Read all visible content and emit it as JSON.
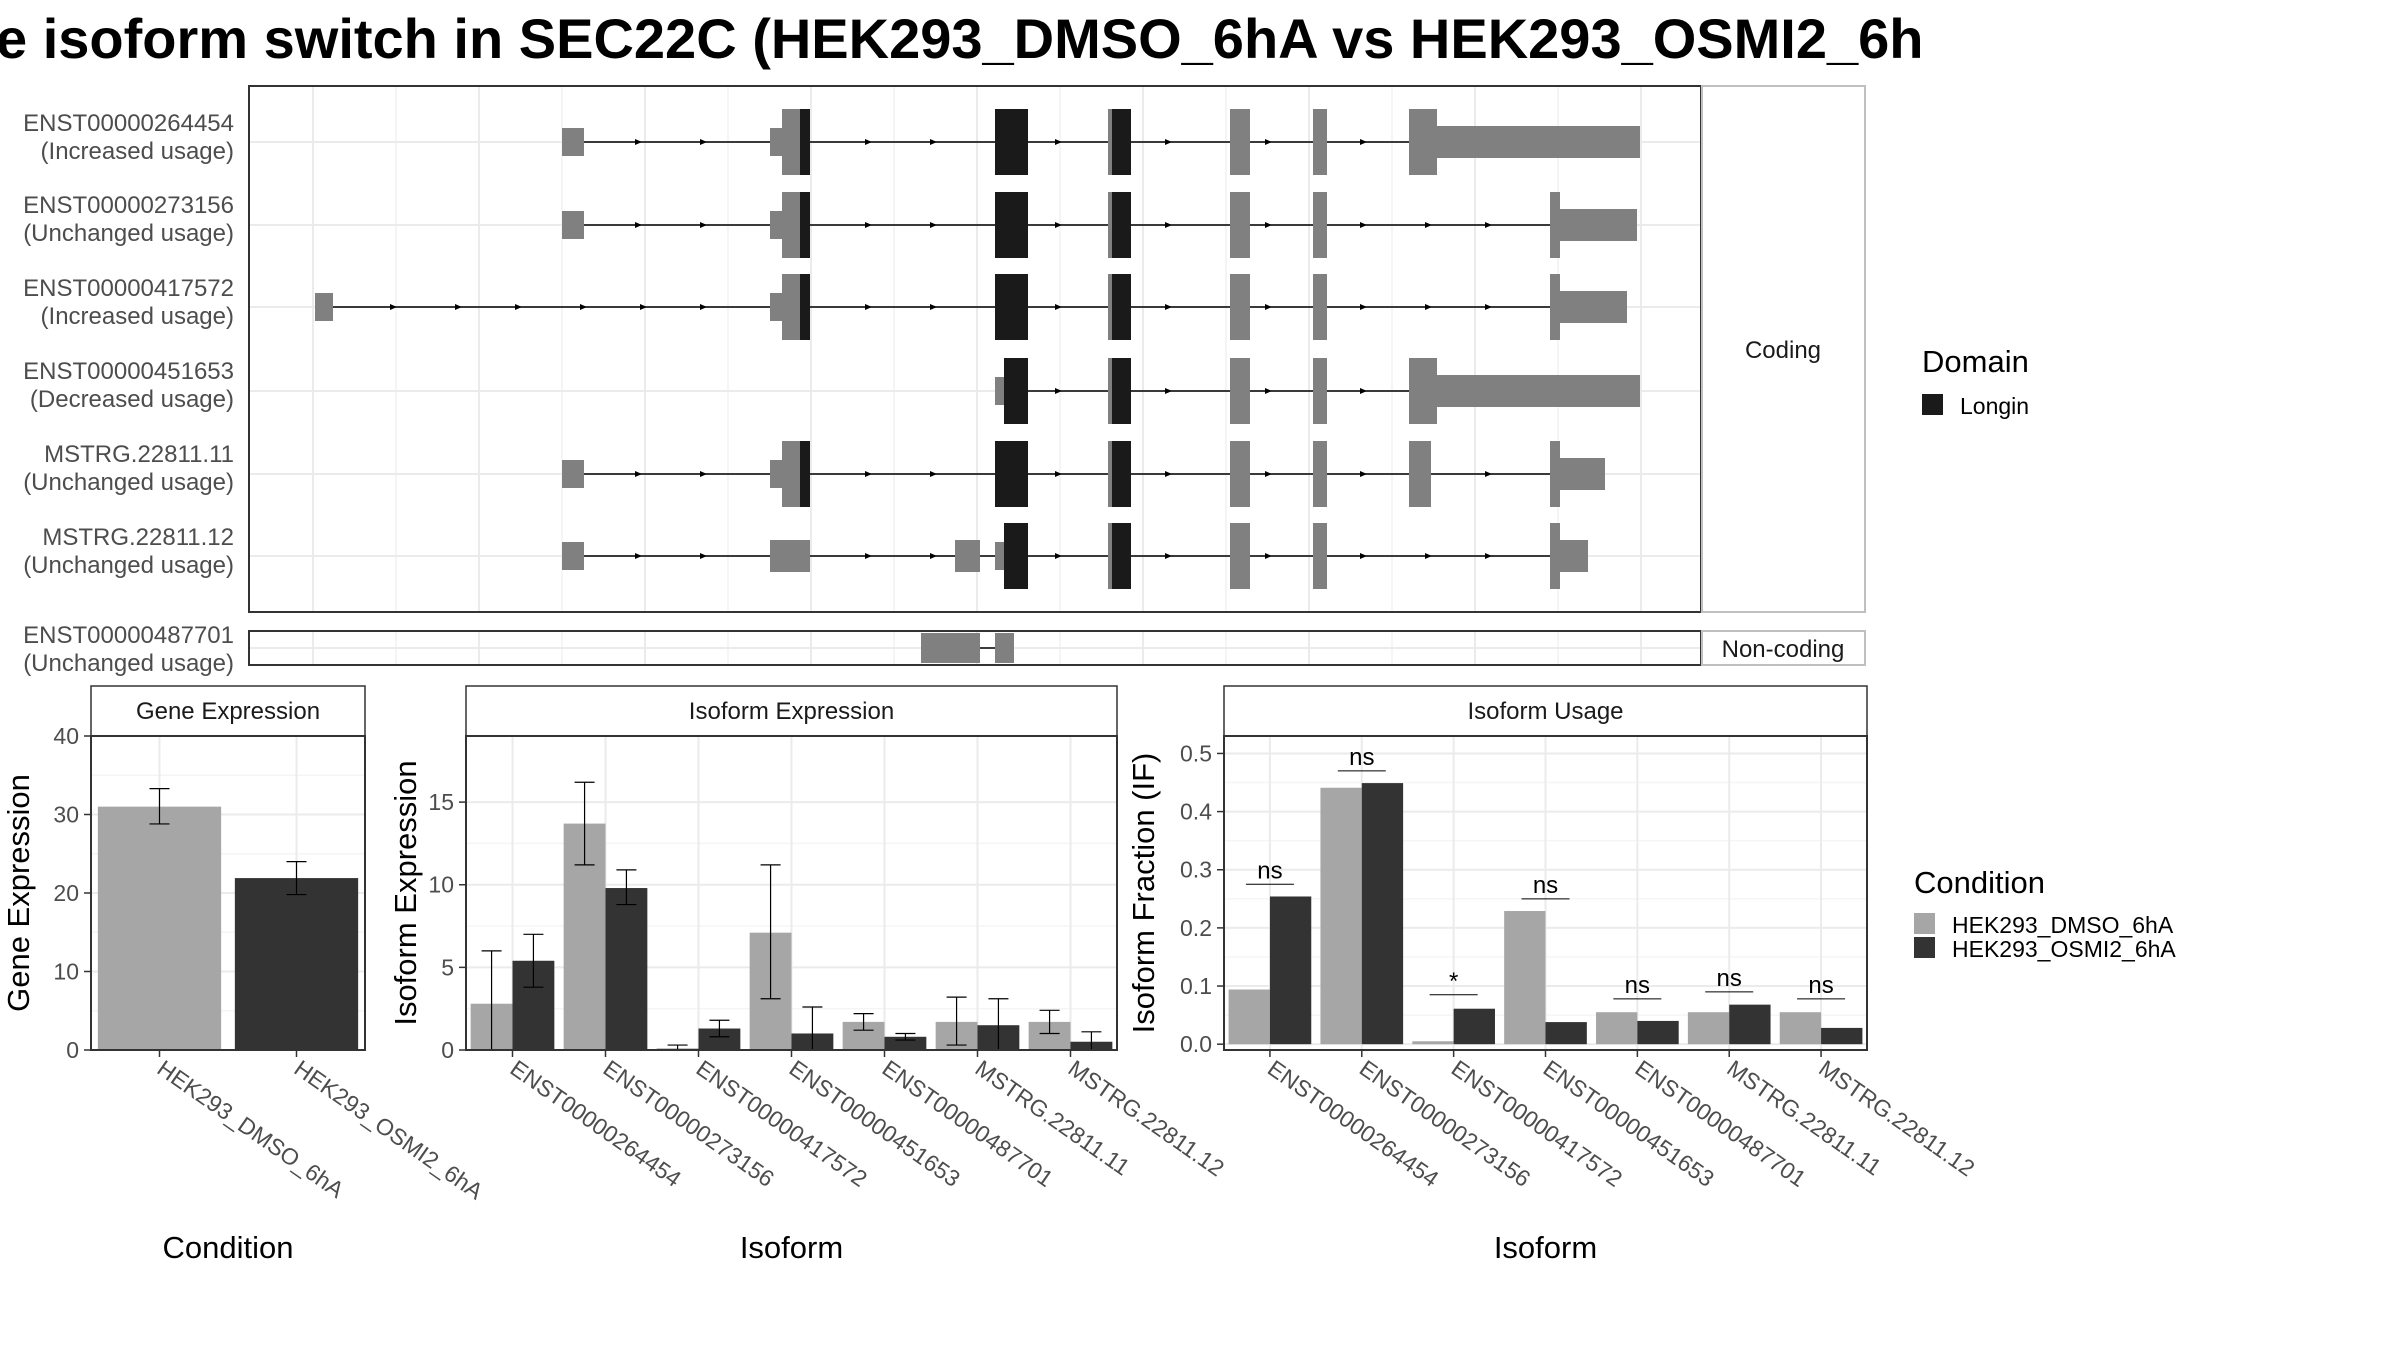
{
  "title": "e isoform switch in SEC22C (HEK293_DMSO_6hA vs HEK293_OSMI2_6h",
  "colors": {
    "dmso": "#a6a6a6",
    "osmi": "#333333",
    "exon": "#808080",
    "domain": "#1a1a1a",
    "panel_border": "#333333",
    "strip_border": "#bfbfbf",
    "grid_major": "#ebebeb",
    "grid_minor": "#f5f5f5"
  },
  "transcripts": {
    "strip_coding": "Coding",
    "strip_noncoding": "Non-coding",
    "coding": [
      {
        "id": "ENST00000264454",
        "usage": "(Increased usage)"
      },
      {
        "id": "ENST00000273156",
        "usage": "(Unchanged usage)"
      },
      {
        "id": "ENST00000417572",
        "usage": "(Increased usage)"
      },
      {
        "id": "ENST00000451653",
        "usage": "(Decreased usage)"
      },
      {
        "id": "MSTRG.22811.11",
        "usage": "(Unchanged usage)"
      },
      {
        "id": "MSTRG.22811.12",
        "usage": "(Unchanged usage)"
      }
    ],
    "noncoding": [
      {
        "id": "ENST00000487701",
        "usage": "(Unchanged usage)"
      }
    ]
  },
  "legend_domain": {
    "title": "Domain",
    "items": [
      "Longin"
    ]
  },
  "legend_condition": {
    "title": "Condition",
    "items": [
      "HEK293_DMSO_6hA",
      "HEK293_OSMI2_6hA"
    ]
  },
  "chart_data": [
    {
      "type": "bar",
      "title": "Gene Expression",
      "xlabel": "Condition",
      "ylabel": "Gene Expression",
      "ylim": [
        0,
        40
      ],
      "yticks": [
        0,
        10,
        20,
        30,
        40
      ],
      "categories": [
        "HEK293_DMSO_6hA",
        "HEK293_OSMI2_6hA"
      ],
      "values": [
        31.0,
        21.9
      ],
      "errors": [
        [
          28.8,
          33.3
        ],
        [
          19.8,
          24.0
        ]
      ]
    },
    {
      "type": "bar",
      "title": "Isoform Expression",
      "xlabel": "Isoform",
      "ylabel": "Isoform Expression",
      "ylim": [
        0,
        19
      ],
      "yticks": [
        0,
        5,
        10,
        15
      ],
      "categories": [
        "ENST00000264454",
        "ENST00000273156",
        "ENST00000417572",
        "ENST00000451653",
        "ENST00000487701",
        "MSTRG.22811.11",
        "MSTRG.22811.12"
      ],
      "series": [
        {
          "name": "HEK293_DMSO_6hA",
          "values": [
            2.8,
            13.7,
            0.1,
            7.1,
            1.7,
            1.7,
            1.7
          ],
          "errors": [
            [
              0.0,
              6.0
            ],
            [
              11.2,
              16.2
            ],
            [
              0.0,
              0.3
            ],
            [
              3.1,
              11.2
            ],
            [
              1.2,
              2.2
            ],
            [
              0.3,
              3.2
            ],
            [
              1.0,
              2.4
            ]
          ]
        },
        {
          "name": "HEK293_OSMI2_6hA",
          "values": [
            5.4,
            9.8,
            1.3,
            1.0,
            0.8,
            1.5,
            0.5
          ],
          "errors": [
            [
              3.8,
              7.0
            ],
            [
              8.8,
              10.9
            ],
            [
              0.8,
              1.8
            ],
            [
              0.0,
              2.6
            ],
            [
              0.6,
              1.0
            ],
            [
              0.0,
              3.1
            ],
            [
              0.0,
              1.1
            ]
          ]
        }
      ]
    },
    {
      "type": "bar",
      "title": "Isoform Usage",
      "xlabel": "Isoform",
      "ylabel": "Isoform Fraction (IF)",
      "ylim": [
        -0.01,
        0.53
      ],
      "yticks": [
        0.0,
        0.1,
        0.2,
        0.3,
        0.4,
        0.5
      ],
      "ytick_labels": [
        "0.0",
        "0.1",
        "0.2",
        "0.3",
        "0.4",
        "0.5"
      ],
      "categories": [
        "ENST00000264454",
        "ENST00000273156",
        "ENST00000417572",
        "ENST00000451653",
        "ENST00000487701",
        "MSTRG.22811.11",
        "MSTRG.22811.12"
      ],
      "series": [
        {
          "name": "HEK293_DMSO_6hA",
          "values": [
            0.094,
            0.441,
            0.005,
            0.229,
            0.055,
            0.055,
            0.055
          ]
        },
        {
          "name": "HEK293_OSMI2_6hA",
          "values": [
            0.254,
            0.449,
            0.061,
            0.038,
            0.04,
            0.068,
            0.028
          ]
        }
      ],
      "significance": [
        {
          "label": "ns",
          "y": 0.275
        },
        {
          "label": "ns",
          "y": 0.47
        },
        {
          "label": "*",
          "y": 0.085
        },
        {
          "label": "ns",
          "y": 0.25
        },
        {
          "label": "ns",
          "y": 0.078
        },
        {
          "label": "ns",
          "y": 0.09
        },
        {
          "label": "ns",
          "y": 0.078
        }
      ]
    }
  ]
}
